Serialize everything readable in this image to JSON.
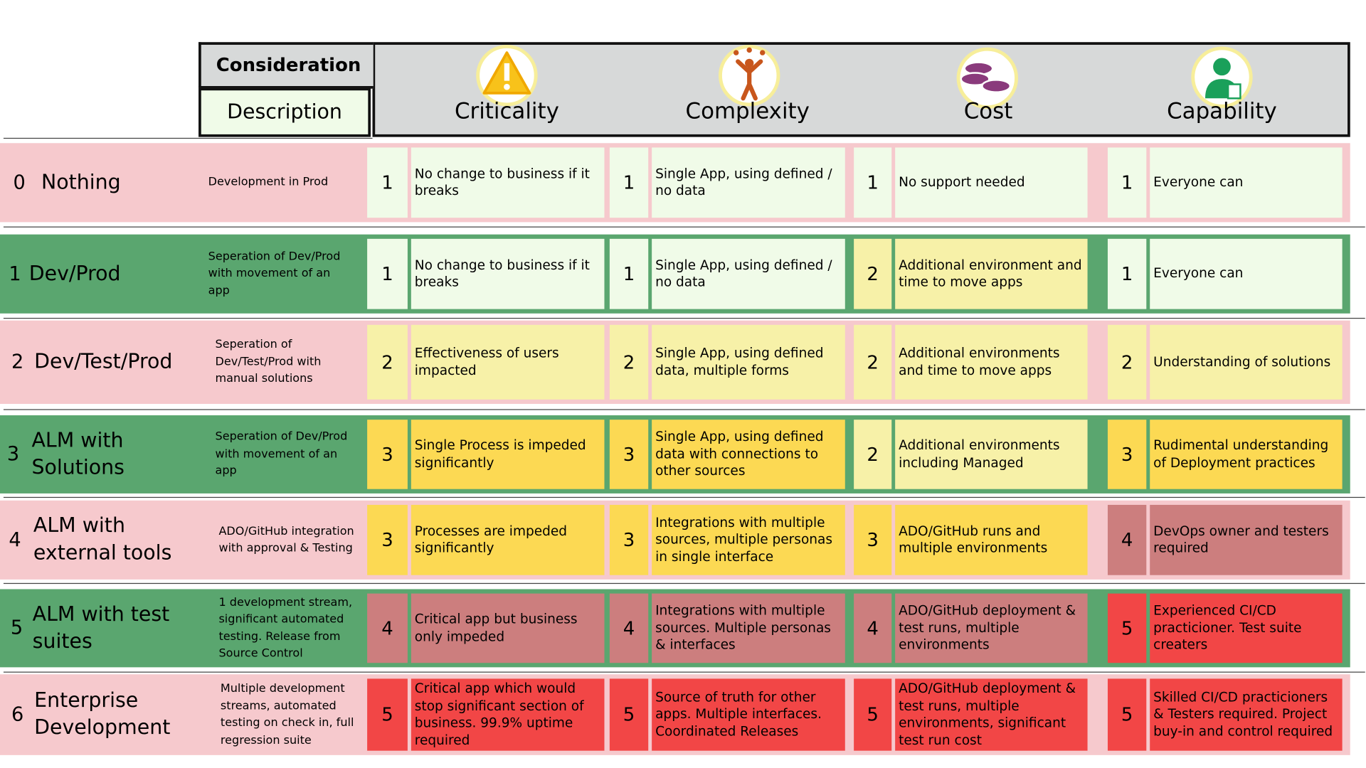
{
  "header": {
    "consideration": "Consideration",
    "description": "Description",
    "columns": [
      "Criticality",
      "Complexity",
      "Cost",
      "Capability"
    ]
  },
  "rows": [
    {
      "level": 0,
      "name": "Nothing",
      "description": "Development in Prod",
      "cells": [
        {
          "score": 1,
          "text": "No change to business if it breaks"
        },
        {
          "score": 1,
          "text": "Single App, using defined / no data"
        },
        {
          "score": 1,
          "text": "No support needed"
        },
        {
          "score": 1,
          "text": "Everyone can"
        }
      ]
    },
    {
      "level": 1,
      "name": "Dev/Prod",
      "description": "Seperation of Dev/Prod with movement of an app",
      "cells": [
        {
          "score": 1,
          "text": "No change to business if it breaks"
        },
        {
          "score": 1,
          "text": "Single App, using defined / no data"
        },
        {
          "score": 2,
          "text": "Additional environment and time to move apps"
        },
        {
          "score": 1,
          "text": "Everyone can"
        }
      ]
    },
    {
      "level": 2,
      "name": "Dev/Test/Prod",
      "description": "Seperation of Dev/Test/Prod with manual solutions",
      "cells": [
        {
          "score": 2,
          "text": "Effectiveness of users impacted"
        },
        {
          "score": 2,
          "text": "Single App, using defined data, multiple forms"
        },
        {
          "score": 2,
          "text": "Additional environments and time to move apps"
        },
        {
          "score": 2,
          "text": "Understanding of solutions"
        }
      ]
    },
    {
      "level": 3,
      "name": "ALM with Solutions",
      "description": "Seperation of Dev/Prod with movement of an app",
      "cells": [
        {
          "score": 3,
          "text": "Single Process is impeded significantly"
        },
        {
          "score": 3,
          "text": "Single App, using defined data with connections to other sources"
        },
        {
          "score": 2,
          "text": "Additional  environments including Managed"
        },
        {
          "score": 3,
          "text": "Rudimental understanding of Deployment practices"
        }
      ]
    },
    {
      "level": 4,
      "name": "ALM with external tools",
      "description": "ADO/GitHub integration with approval & Testing",
      "cells": [
        {
          "score": 3,
          "text": "Processes are impeded significantly"
        },
        {
          "score": 3,
          "text": "Integrations with multiple sources, multiple personas in single interface"
        },
        {
          "score": 3,
          "text": "ADO/GitHub runs and multiple environments"
        },
        {
          "score": 4,
          "text": "DevOps owner and testers required"
        }
      ]
    },
    {
      "level": 5,
      "name": "ALM with test suites",
      "description": "1 development stream, significant automated testing. Release from Source Control",
      "cells": [
        {
          "score": 4,
          "text": "Critical app but business only impeded"
        },
        {
          "score": 4,
          "text": "Integrations with multiple sources. Multiple personas & interfaces"
        },
        {
          "score": 4,
          "text": "ADO/GitHub deployment & test runs, multiple environments"
        },
        {
          "score": 5,
          "text": "Experienced CI/CD practicioner. Test suite creaters"
        }
      ]
    },
    {
      "level": 6,
      "name": "Enterprise Development",
      "description": "Multiple development streams, automated testing on check in, full regression suite",
      "cells": [
        {
          "score": 5,
          "text": "Critical app which would stop significant section of business. 99.9% uptime required"
        },
        {
          "score": 5,
          "text": "Source of truth for other apps. Multiple interfaces. Coordinated Releases"
        },
        {
          "score": 5,
          "text": "ADO/GitHub deployment & test runs, multiple environments, significant test run cost"
        },
        {
          "score": 5,
          "text": "Skilled CI/CD practicioners & Testers required. Project buy-in and control required"
        }
      ]
    }
  ]
}
